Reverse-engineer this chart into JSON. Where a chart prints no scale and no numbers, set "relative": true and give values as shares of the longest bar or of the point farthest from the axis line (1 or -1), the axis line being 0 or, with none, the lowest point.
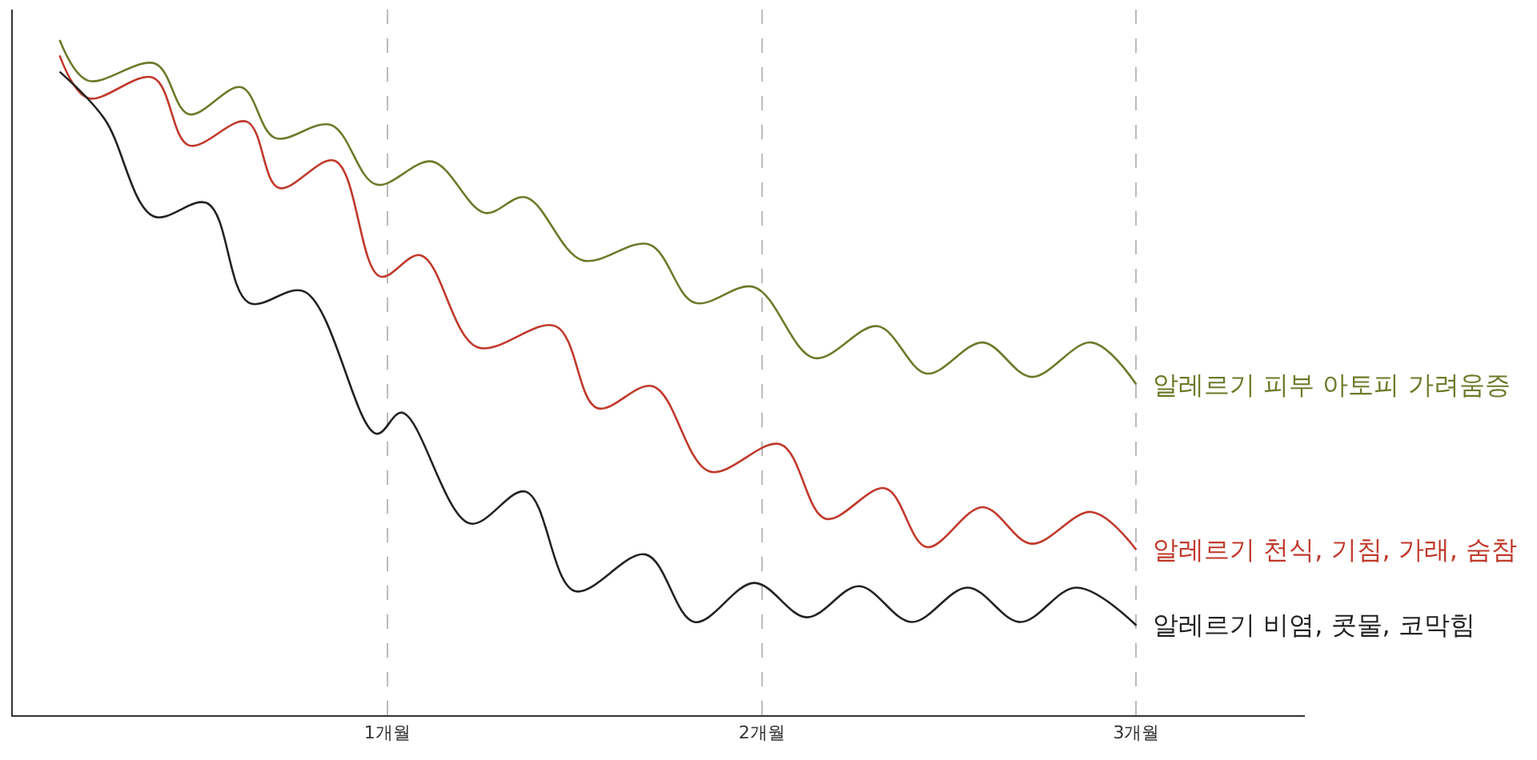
{
  "chart_data": {
    "type": "line",
    "relative": true,
    "grid": "x",
    "line_style": "solid",
    "marker": "none",
    "legend": false,
    "xlim": [
      0,
      3.45
    ],
    "xticks": [
      {
        "value": 1,
        "label": "1개월"
      },
      {
        "value": 2,
        "label": "2개월"
      },
      {
        "value": 3,
        "label": "3개월"
      }
    ],
    "series": [
      {
        "name": "알레르기 피부 아토피 가려움증",
        "color": "#6b7b2a",
        "x": [
          0.125,
          0.2,
          0.38,
          0.47,
          0.61,
          0.7,
          0.85,
          0.97,
          1.12,
          1.26,
          1.37,
          1.52,
          1.7,
          1.82,
          1.98,
          2.14,
          2.31,
          2.44,
          2.59,
          2.72,
          2.88,
          3.0
        ],
        "values": [
          1.0,
          0.94,
          0.965,
          0.89,
          0.93,
          0.855,
          0.874,
          0.786,
          0.82,
          0.744,
          0.767,
          0.674,
          0.697,
          0.611,
          0.634,
          0.529,
          0.576,
          0.506,
          0.552,
          0.501,
          0.552,
          0.49
        ]
      },
      {
        "name": "알레르기 천식, 기침, 가래, 숨참",
        "color": "#c0392b",
        "x": [
          0.125,
          0.2,
          0.375,
          0.47,
          0.625,
          0.71,
          0.86,
          0.98,
          1.09,
          1.24,
          1.45,
          1.56,
          1.71,
          1.86,
          2.05,
          2.17,
          2.33,
          2.44,
          2.59,
          2.72,
          2.88,
          3.0
        ],
        "values": [
          0.977,
          0.914,
          0.944,
          0.844,
          0.879,
          0.781,
          0.821,
          0.65,
          0.681,
          0.545,
          0.576,
          0.455,
          0.487,
          0.361,
          0.401,
          0.291,
          0.336,
          0.249,
          0.308,
          0.254,
          0.301,
          0.245
        ]
      },
      {
        "name": "알레르기 비염, 콧물, 코막힘",
        "color": "#222222",
        "x": [
          0.125,
          0.245,
          0.375,
          0.52,
          0.63,
          0.78,
          0.97,
          1.04,
          1.22,
          1.37,
          1.5,
          1.69,
          1.82,
          1.98,
          2.12,
          2.26,
          2.4,
          2.55,
          2.69,
          2.84,
          3.0
        ],
        "values": [
          0.953,
          0.883,
          0.739,
          0.758,
          0.611,
          0.627,
          0.417,
          0.448,
          0.284,
          0.331,
          0.184,
          0.238,
          0.138,
          0.196,
          0.145,
          0.191,
          0.138,
          0.189,
          0.138,
          0.189,
          0.133
        ]
      }
    ]
  }
}
